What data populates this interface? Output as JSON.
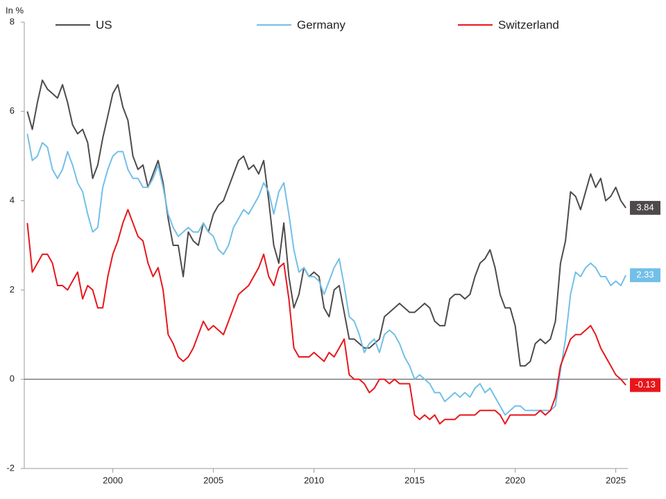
{
  "chart_data": {
    "type": "line",
    "ylabel": "In %",
    "x": [
      1995.75,
      1996,
      1996.25,
      1996.5,
      1996.75,
      1997,
      1997.25,
      1997.5,
      1997.75,
      1998,
      1998.25,
      1998.5,
      1998.75,
      1999,
      1999.25,
      1999.5,
      1999.75,
      2000,
      2000.25,
      2000.5,
      2000.75,
      2001,
      2001.25,
      2001.5,
      2001.75,
      2002,
      2002.25,
      2002.5,
      2002.75,
      2003,
      2003.25,
      2003.5,
      2003.75,
      2004,
      2004.25,
      2004.5,
      2004.75,
      2005,
      2005.25,
      2005.5,
      2005.75,
      2006,
      2006.25,
      2006.5,
      2006.75,
      2007,
      2007.25,
      2007.5,
      2007.75,
      2008,
      2008.25,
      2008.5,
      2008.75,
      2009,
      2009.25,
      2009.5,
      2009.75,
      2010,
      2010.25,
      2010.5,
      2010.75,
      2011,
      2011.25,
      2011.5,
      2011.75,
      2012,
      2012.25,
      2012.5,
      2012.75,
      2013,
      2013.25,
      2013.5,
      2013.75,
      2014,
      2014.25,
      2014.5,
      2014.75,
      2015,
      2015.25,
      2015.5,
      2015.75,
      2016,
      2016.25,
      2016.5,
      2016.75,
      2017,
      2017.25,
      2017.5,
      2017.75,
      2018,
      2018.25,
      2018.5,
      2018.75,
      2019,
      2019.25,
      2019.5,
      2019.75,
      2020,
      2020.25,
      2020.5,
      2020.75,
      2021,
      2021.25,
      2021.5,
      2021.75,
      2022,
      2022.25,
      2022.5,
      2022.75,
      2023,
      2023.25,
      2023.5,
      2023.75,
      2024,
      2024.25,
      2024.5,
      2024.75,
      2025,
      2025.25,
      2025.5
    ],
    "series": [
      {
        "name": "US",
        "color": "#4f4a4a",
        "values": [
          6.0,
          5.6,
          6.2,
          6.7,
          6.5,
          6.4,
          6.3,
          6.6,
          6.2,
          5.7,
          5.5,
          5.6,
          5.3,
          4.5,
          4.8,
          5.4,
          5.9,
          6.4,
          6.6,
          6.1,
          5.8,
          5.0,
          4.7,
          4.8,
          4.3,
          4.6,
          4.9,
          4.4,
          3.6,
          3.0,
          3.0,
          2.3,
          3.3,
          3.1,
          3.0,
          3.5,
          3.3,
          3.7,
          3.9,
          4.0,
          4.3,
          4.6,
          4.9,
          5.0,
          4.7,
          4.8,
          4.6,
          4.9,
          4.0,
          3.0,
          2.6,
          3.5,
          2.3,
          1.6,
          1.9,
          2.5,
          2.3,
          2.4,
          2.3,
          1.6,
          1.4,
          2.0,
          2.1,
          1.5,
          0.9,
          0.9,
          0.8,
          0.7,
          0.7,
          0.8,
          0.9,
          1.4,
          1.5,
          1.6,
          1.7,
          1.6,
          1.5,
          1.5,
          1.6,
          1.7,
          1.6,
          1.3,
          1.2,
          1.2,
          1.8,
          1.9,
          1.9,
          1.8,
          1.9,
          2.3,
          2.6,
          2.7,
          2.9,
          2.5,
          1.9,
          1.6,
          1.6,
          1.2,
          0.3,
          0.3,
          0.4,
          0.8,
          0.9,
          0.8,
          0.9,
          1.3,
          2.6,
          3.1,
          4.2,
          4.1,
          3.8,
          4.2,
          4.6,
          4.3,
          4.5,
          4.0,
          4.1,
          4.3,
          4.0,
          3.84
        ]
      },
      {
        "name": "Germany",
        "color": "#72bfe8",
        "values": [
          5.5,
          4.9,
          5.0,
          5.3,
          5.2,
          4.7,
          4.5,
          4.7,
          5.1,
          4.8,
          4.4,
          4.2,
          3.7,
          3.3,
          3.4,
          4.3,
          4.7,
          5.0,
          5.1,
          5.1,
          4.7,
          4.5,
          4.5,
          4.3,
          4.3,
          4.5,
          4.8,
          4.3,
          3.7,
          3.4,
          3.2,
          3.3,
          3.4,
          3.3,
          3.3,
          3.5,
          3.3,
          3.2,
          2.9,
          2.8,
          3.0,
          3.4,
          3.6,
          3.8,
          3.7,
          3.9,
          4.1,
          4.4,
          4.2,
          3.7,
          4.2,
          4.4,
          3.7,
          2.9,
          2.4,
          2.5,
          2.3,
          2.3,
          2.2,
          1.9,
          2.2,
          2.5,
          2.7,
          2.1,
          1.4,
          1.3,
          1.0,
          0.6,
          0.8,
          0.9,
          0.6,
          1.0,
          1.1,
          1.0,
          0.8,
          0.5,
          0.3,
          0.0,
          0.1,
          0.0,
          -0.1,
          -0.3,
          -0.3,
          -0.5,
          -0.4,
          -0.3,
          -0.4,
          -0.3,
          -0.4,
          -0.2,
          -0.1,
          -0.3,
          -0.2,
          -0.4,
          -0.6,
          -0.8,
          -0.7,
          -0.6,
          -0.6,
          -0.7,
          -0.7,
          -0.7,
          -0.7,
          -0.7,
          -0.7,
          -0.6,
          0.2,
          0.9,
          1.9,
          2.4,
          2.3,
          2.5,
          2.6,
          2.5,
          2.3,
          2.3,
          2.1,
          2.2,
          2.1,
          2.33
        ]
      },
      {
        "name": "Switzerland",
        "color": "#e8161b",
        "values": [
          3.5,
          2.4,
          2.6,
          2.8,
          2.8,
          2.6,
          2.1,
          2.1,
          2.0,
          2.2,
          2.4,
          1.8,
          2.1,
          2.0,
          1.6,
          1.6,
          2.3,
          2.8,
          3.1,
          3.5,
          3.8,
          3.5,
          3.2,
          3.1,
          2.6,
          2.3,
          2.5,
          2.0,
          1.0,
          0.8,
          0.5,
          0.4,
          0.5,
          0.7,
          1.0,
          1.3,
          1.1,
          1.2,
          1.1,
          1.0,
          1.3,
          1.6,
          1.9,
          2.0,
          2.1,
          2.3,
          2.5,
          2.8,
          2.3,
          2.1,
          2.5,
          2.6,
          1.8,
          0.7,
          0.5,
          0.5,
          0.5,
          0.6,
          0.5,
          0.4,
          0.6,
          0.5,
          0.7,
          0.9,
          0.1,
          0.0,
          0.0,
          -0.1,
          -0.3,
          -0.2,
          0.0,
          0.0,
          -0.1,
          0.0,
          -0.1,
          -0.1,
          -0.1,
          -0.8,
          -0.9,
          -0.8,
          -0.9,
          -0.8,
          -1.0,
          -0.9,
          -0.9,
          -0.9,
          -0.8,
          -0.8,
          -0.8,
          -0.8,
          -0.7,
          -0.7,
          -0.7,
          -0.7,
          -0.8,
          -1.0,
          -0.8,
          -0.8,
          -0.8,
          -0.8,
          -0.8,
          -0.8,
          -0.7,
          -0.8,
          -0.7,
          -0.4,
          0.3,
          0.6,
          0.9,
          1.0,
          1.0,
          1.1,
          1.2,
          1.0,
          0.7,
          0.5,
          0.3,
          0.1,
          0.0,
          -0.13
        ]
      }
    ],
    "xlim": [
      1995.6,
      2025.6
    ],
    "xticks": [
      2000,
      2005,
      2010,
      2015,
      2020,
      2025
    ],
    "ylim": [
      -2,
      8
    ],
    "yticks": [
      -2,
      0,
      2,
      4,
      6,
      8
    ],
    "zero_line": true
  }
}
